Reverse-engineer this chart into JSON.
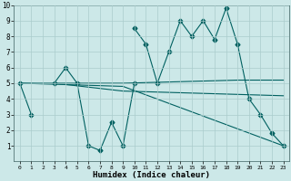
{
  "xlabel": "Humidex (Indice chaleur)",
  "x_values": [
    0,
    1,
    2,
    3,
    4,
    5,
    6,
    7,
    8,
    9,
    10,
    11,
    12,
    13,
    14,
    15,
    16,
    17,
    18,
    19,
    20,
    21,
    22,
    23
  ],
  "line1_y": [
    5,
    3,
    null,
    5,
    6,
    5,
    1,
    0.7,
    2.5,
    1,
    5,
    null,
    null,
    null,
    null,
    null,
    null,
    null,
    null,
    null,
    null,
    null,
    null,
    null
  ],
  "line2_y": [
    null,
    null,
    null,
    null,
    null,
    null,
    null,
    null,
    null,
    null,
    8.5,
    7.5,
    5,
    7,
    9,
    8,
    9,
    7.8,
    9.8,
    7.5,
    4,
    3,
    1.8,
    1
  ],
  "line3_x": [
    0,
    9,
    19,
    23
  ],
  "line3_y": [
    5,
    5,
    5.2,
    5.2
  ],
  "line4_x": [
    0,
    9,
    23
  ],
  "line4_y": [
    5,
    4.8,
    1.0
  ],
  "line5_x": [
    3,
    9,
    23
  ],
  "line5_y": [
    5,
    4.5,
    4.2
  ],
  "bg_color": "#cce8e8",
  "line_color": "#006060",
  "grid_color": "#aacccc",
  "xlim": [
    -0.5,
    23.5
  ],
  "ylim": [
    0,
    10
  ],
  "yticks": [
    1,
    2,
    3,
    4,
    5,
    6,
    7,
    8,
    9,
    10
  ],
  "xticks": [
    0,
    1,
    2,
    3,
    4,
    5,
    6,
    7,
    8,
    9,
    10,
    11,
    12,
    13,
    14,
    15,
    16,
    17,
    18,
    19,
    20,
    21,
    22,
    23
  ]
}
